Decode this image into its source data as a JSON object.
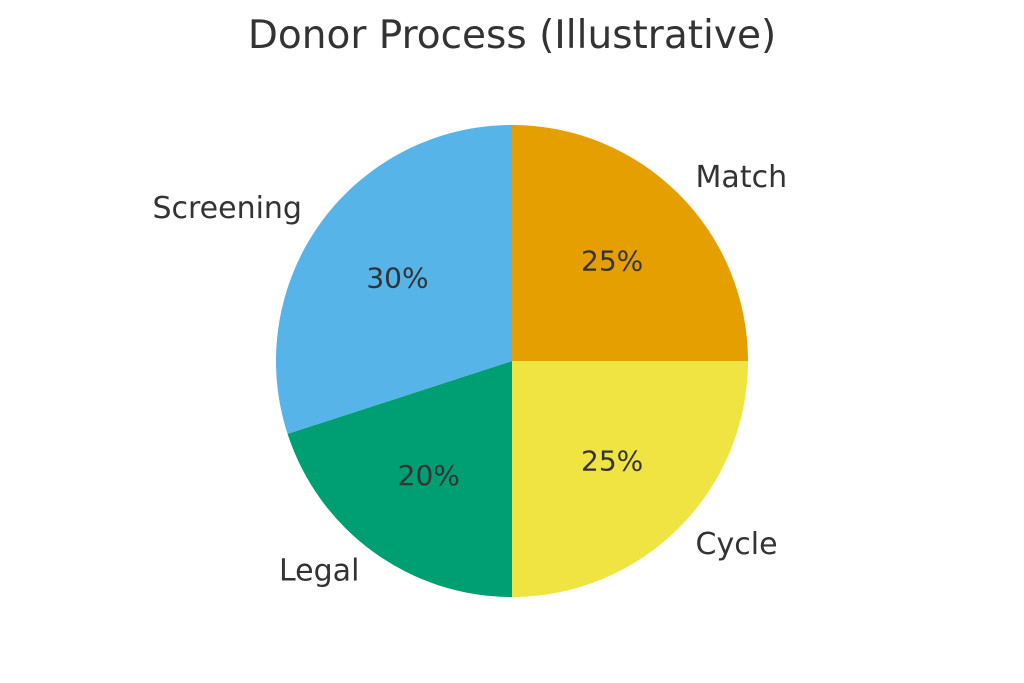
{
  "chart_data": {
    "type": "pie",
    "title": "Donor Process (Illustrative)",
    "labels": [
      "Match",
      "Cycle",
      "Legal",
      "Screening"
    ],
    "values": [
      25,
      25,
      20,
      30
    ],
    "pct_labels": [
      "25%",
      "25%",
      "20%",
      "30%"
    ],
    "colors": [
      "#E69F00",
      "#F0E442",
      "#009E73",
      "#56B4E9"
    ],
    "start_angle_deg": 90,
    "direction": "clockwise",
    "text_color": "#333333",
    "background_color": "#ffffff",
    "pct_distance": 0.6,
    "label_distance": 1.1,
    "legend": "none",
    "slice_border": "none"
  }
}
